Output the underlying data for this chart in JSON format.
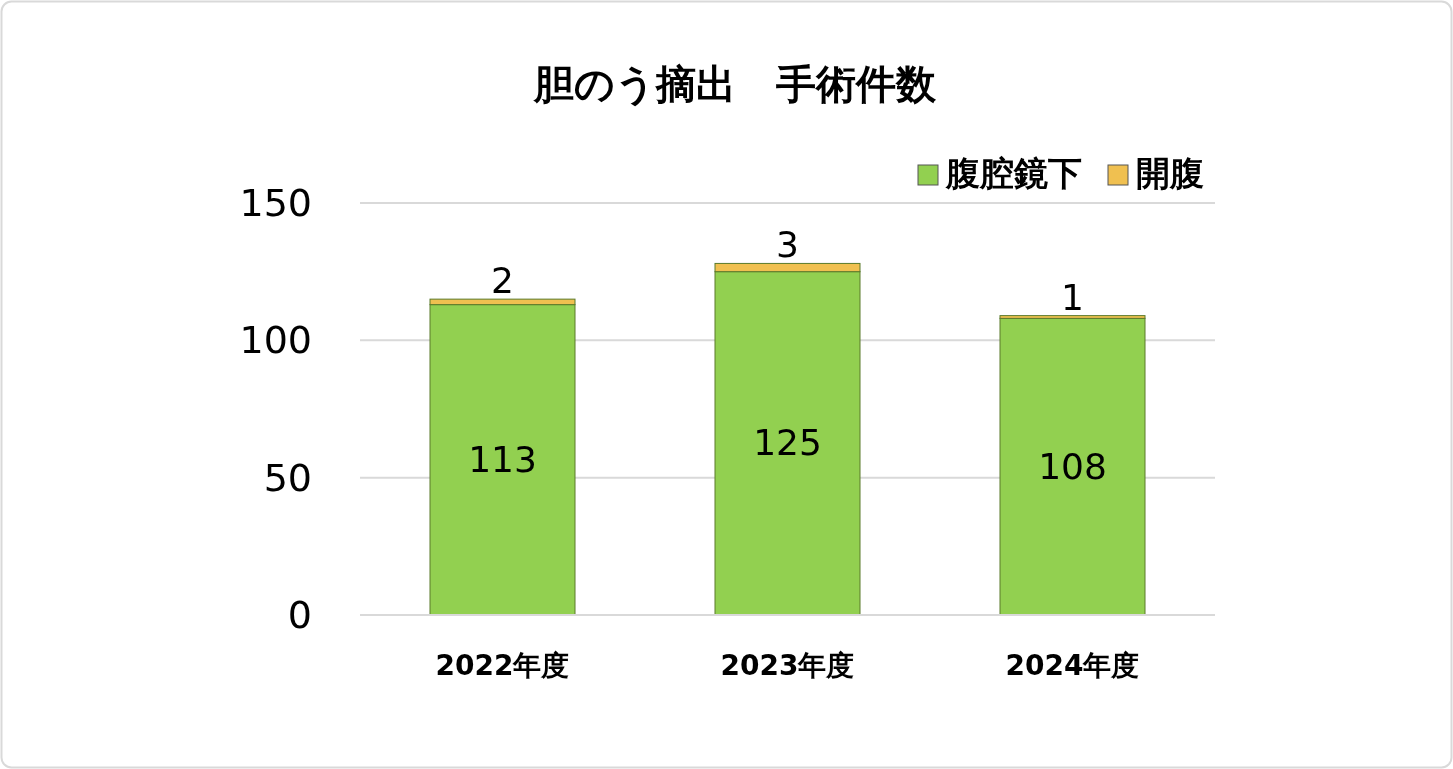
{
  "chart_data": {
    "type": "bar",
    "title": "胆のう摘出　手術件数",
    "categories": [
      "2022年度",
      "2023年度",
      "2024年度"
    ],
    "stacked": true,
    "data_labels": true,
    "series": [
      {
        "name": "腹腔鏡下",
        "color": "#92d050",
        "values": [
          113,
          125,
          108
        ]
      },
      {
        "name": "開腹",
        "color": "#f0c050",
        "values": [
          2,
          3,
          1
        ]
      }
    ],
    "ylim": [
      0,
      150
    ],
    "yticks": [
      0,
      50,
      100,
      150
    ],
    "grid": "y",
    "legend": "top right"
  }
}
